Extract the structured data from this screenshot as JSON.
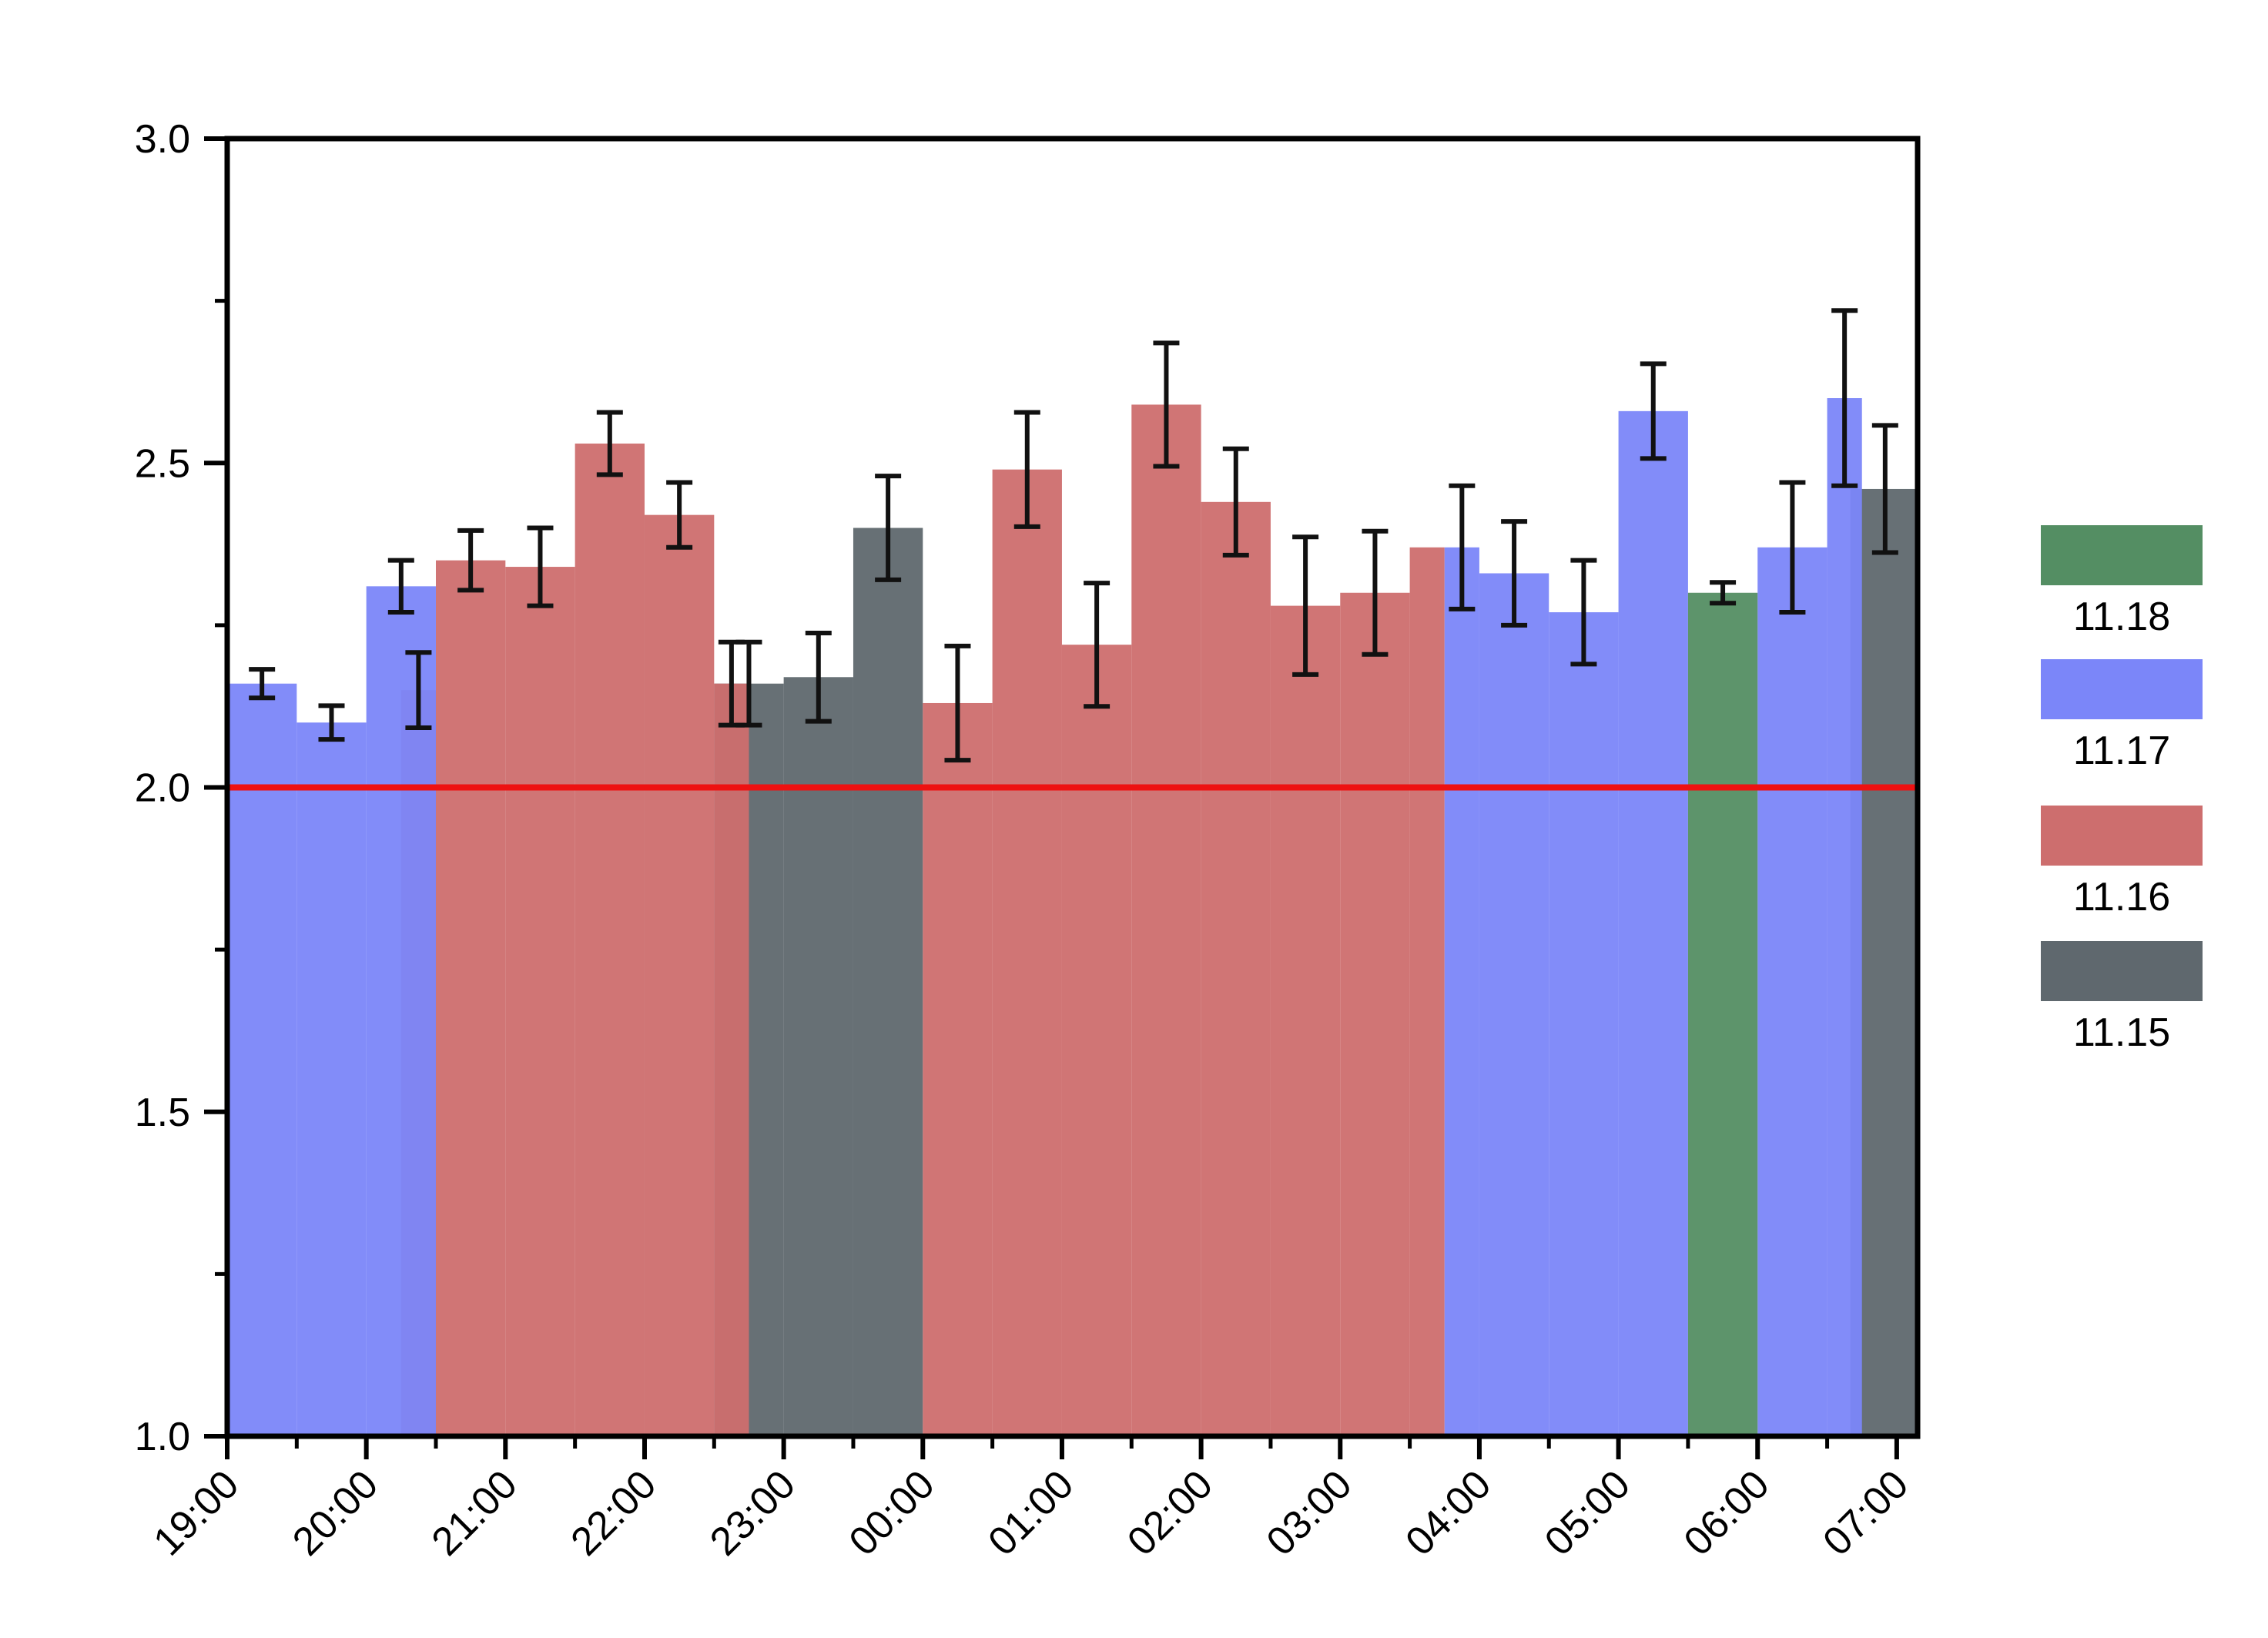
{
  "chart_data": {
    "type": "bar",
    "title": "",
    "xlabel": "",
    "ylabel": "",
    "ylim": [
      1.0,
      3.0
    ],
    "y_ticks": [
      "1.0",
      "1.5",
      "2.0",
      "2.5",
      "3.0"
    ],
    "x_range_hours": [
      19.0,
      31.15
    ],
    "x_ticks": [
      "19:00",
      "20:00",
      "21:00",
      "22:00",
      "23:00",
      "00:00",
      "01:00",
      "02:00",
      "03:00",
      "04:00",
      "05:00",
      "06:00",
      "07:00"
    ],
    "grid": false,
    "legend_position": "right",
    "reference_line": {
      "value": 2.0,
      "color": "#ee1111"
    },
    "series": [
      {
        "name": "11.18",
        "color": "#548e63",
        "bars": [
          {
            "start": "05:30",
            "end": "06:00",
            "value": 2.3,
            "error": 0.016
          }
        ]
      },
      {
        "name": "11.17",
        "color": "#7b86f9",
        "bars": [
          {
            "start": "19:00",
            "end": "19:30",
            "value": 2.16,
            "error": 0.022
          },
          {
            "start": "19:30",
            "end": "20:00",
            "value": 2.1,
            "error": 0.026
          },
          {
            "start": "20:00",
            "end": "20:30",
            "value": 2.31,
            "error": 0.04
          },
          {
            "start": "03:45",
            "end": "04:00",
            "value": 2.37,
            "error": 0.095
          },
          {
            "start": "04:00",
            "end": "04:30",
            "value": 2.33,
            "error": 0.08
          },
          {
            "start": "04:30",
            "end": "05:00",
            "value": 2.27,
            "error": 0.08
          },
          {
            "start": "05:00",
            "end": "05:30",
            "value": 2.58,
            "error": 0.073
          },
          {
            "start": "06:00",
            "end": "06:30",
            "value": 2.37,
            "error": 0.1
          },
          {
            "start": "06:30",
            "end": "06:45",
            "value": 2.6,
            "error": 0.135
          }
        ]
      },
      {
        "name": "11.16",
        "color": "#cd6e6e",
        "bars": [
          {
            "start": "20:15",
            "end": "20:30",
            "value": 2.15,
            "error": 0.058
          },
          {
            "start": "20:30",
            "end": "21:00",
            "value": 2.35,
            "error": 0.046
          },
          {
            "start": "21:00",
            "end": "21:30",
            "value": 2.34,
            "error": 0.06
          },
          {
            "start": "21:30",
            "end": "22:00",
            "value": 2.53,
            "error": 0.048
          },
          {
            "start": "22:00",
            "end": "22:30",
            "value": 2.42,
            "error": 0.05
          },
          {
            "start": "22:30",
            "end": "22:45",
            "value": 2.16,
            "error": 0.064
          },
          {
            "start": "00:00",
            "end": "00:30",
            "value": 2.13,
            "error": 0.088
          },
          {
            "start": "00:30",
            "end": "01:00",
            "value": 2.49,
            "error": 0.088
          },
          {
            "start": "01:00",
            "end": "01:30",
            "value": 2.22,
            "error": 0.095
          },
          {
            "start": "01:30",
            "end": "02:00",
            "value": 2.59,
            "error": 0.095
          },
          {
            "start": "02:00",
            "end": "02:30",
            "value": 2.44,
            "error": 0.082
          },
          {
            "start": "02:30",
            "end": "03:00",
            "value": 2.28,
            "error": 0.106
          },
          {
            "start": "03:00",
            "end": "03:30",
            "value": 2.3,
            "error": 0.095
          },
          {
            "start": "03:30",
            "end": "03:45",
            "value": 2.37,
            "error": 0
          }
        ]
      },
      {
        "name": "11.15",
        "color": "#5f686e",
        "bars": [
          {
            "start": "22:30",
            "end": "23:00",
            "value": 2.16,
            "error": 0.064
          },
          {
            "start": "23:00",
            "end": "23:30",
            "value": 2.17,
            "error": 0.068
          },
          {
            "start": "23:30",
            "end": "00:00",
            "value": 2.4,
            "error": 0.08
          },
          {
            "start": "06:40",
            "end": "07:10",
            "value": 2.46,
            "error": 0.098
          }
        ]
      }
    ]
  }
}
